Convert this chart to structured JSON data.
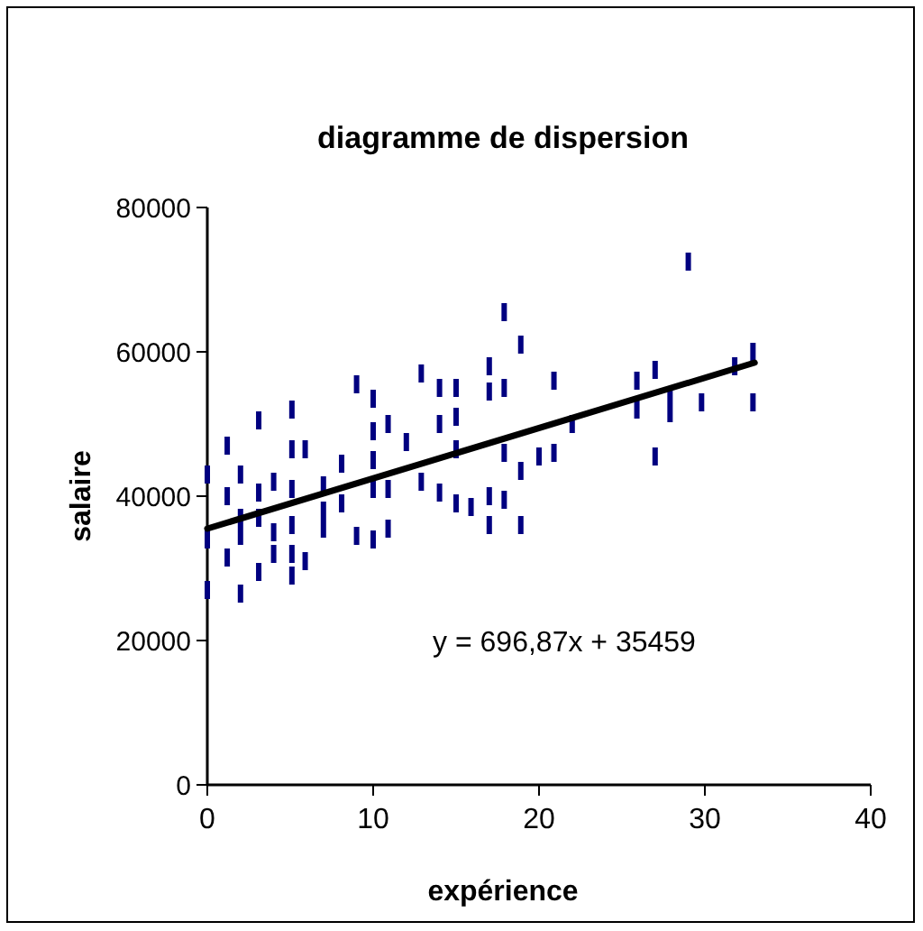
{
  "chart_data": {
    "type": "scatter",
    "title": "diagramme de dispersion",
    "xlabel": "expérience",
    "ylabel": "salaire",
    "xlim": [
      0,
      40
    ],
    "xticks": [
      0,
      10,
      20,
      30,
      40
    ],
    "ylim": [
      0,
      80000
    ],
    "yticks": [
      0,
      20000,
      40000,
      60000,
      80000
    ],
    "grid": false,
    "marker": "square",
    "annotations": [
      "y = 696,87x + 35459"
    ],
    "series": [
      {
        "color": "#000080",
        "x": [
          0,
          0,
          0,
          1.2,
          1.2,
          1.2,
          2,
          2,
          2,
          2,
          3.1,
          3.1,
          3.1,
          3.1,
          4,
          4,
          4,
          5.1,
          5.1,
          5.1,
          5.1,
          5.1,
          5.1,
          5.9,
          5.9,
          7,
          7,
          7,
          8.1,
          8.1,
          9,
          9,
          10,
          10,
          10,
          10,
          10,
          10.9,
          10.9,
          10.9,
          12,
          12.9,
          12.9,
          14,
          14,
          14,
          15,
          15,
          15,
          15,
          15.9,
          17,
          17,
          17,
          17,
          17.9,
          17.9,
          17.9,
          17.9,
          18.9,
          18.9,
          18.9,
          20,
          20.9,
          20.9,
          22,
          25.9,
          25.9,
          27,
          27,
          27.9,
          27.9,
          29,
          29.8,
          31.8,
          32.9,
          32.9
        ],
        "values": [
          43000,
          34000,
          27000,
          47000,
          40000,
          31500,
          43000,
          37000,
          34500,
          26500,
          50500,
          40500,
          37000,
          29500,
          42000,
          35000,
          32000,
          52000,
          46500,
          41000,
          36000,
          32000,
          29000,
          46500,
          31000,
          41500,
          38000,
          35500,
          44500,
          39000,
          55500,
          34500,
          53500,
          49000,
          45000,
          41000,
          34000,
          50000,
          41000,
          35500,
          47500,
          57000,
          42000,
          55000,
          50000,
          40500,
          55000,
          51000,
          46500,
          39000,
          38500,
          58000,
          54500,
          40000,
          36000,
          65500,
          55000,
          46000,
          39500,
          61000,
          43500,
          36000,
          45500,
          56000,
          46000,
          50000,
          56000,
          52000,
          57500,
          45500,
          54000,
          51500,
          72500,
          53000,
          58000,
          60000,
          53000
        ]
      },
      {
        "type": "line",
        "color": "#000000",
        "marker": "none",
        "x": [
          0,
          33
        ],
        "values": [
          35500,
          58500
        ]
      }
    ]
  }
}
